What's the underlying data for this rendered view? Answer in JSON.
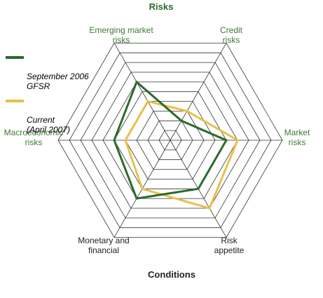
{
  "colors": {
    "primary_green": "#2b6a2e",
    "series1": "#2b6a2e",
    "series2": "#e8c04a",
    "grid": "#333333",
    "label_green": "#3e7a34",
    "label_dark": "#222222"
  },
  "chart_data": {
    "type": "radar",
    "title": "Risks",
    "bottom_title": "Conditions",
    "axes": [
      "Emerging market\nrisks",
      "Credit\nrisks",
      "Market\nrisks",
      "Risk\nappetite",
      "Monetary and\nfinancial",
      "Macroeconomic\nrisks"
    ],
    "rings": 10,
    "range": [
      0,
      10
    ],
    "series": [
      {
        "name": "September 2006\nGFSR",
        "values": [
          6,
          2,
          5,
          5,
          6,
          5
        ]
      },
      {
        "name": "Current\n(April 2007)",
        "values": [
          4,
          3,
          6,
          7,
          5,
          4
        ]
      }
    ]
  }
}
